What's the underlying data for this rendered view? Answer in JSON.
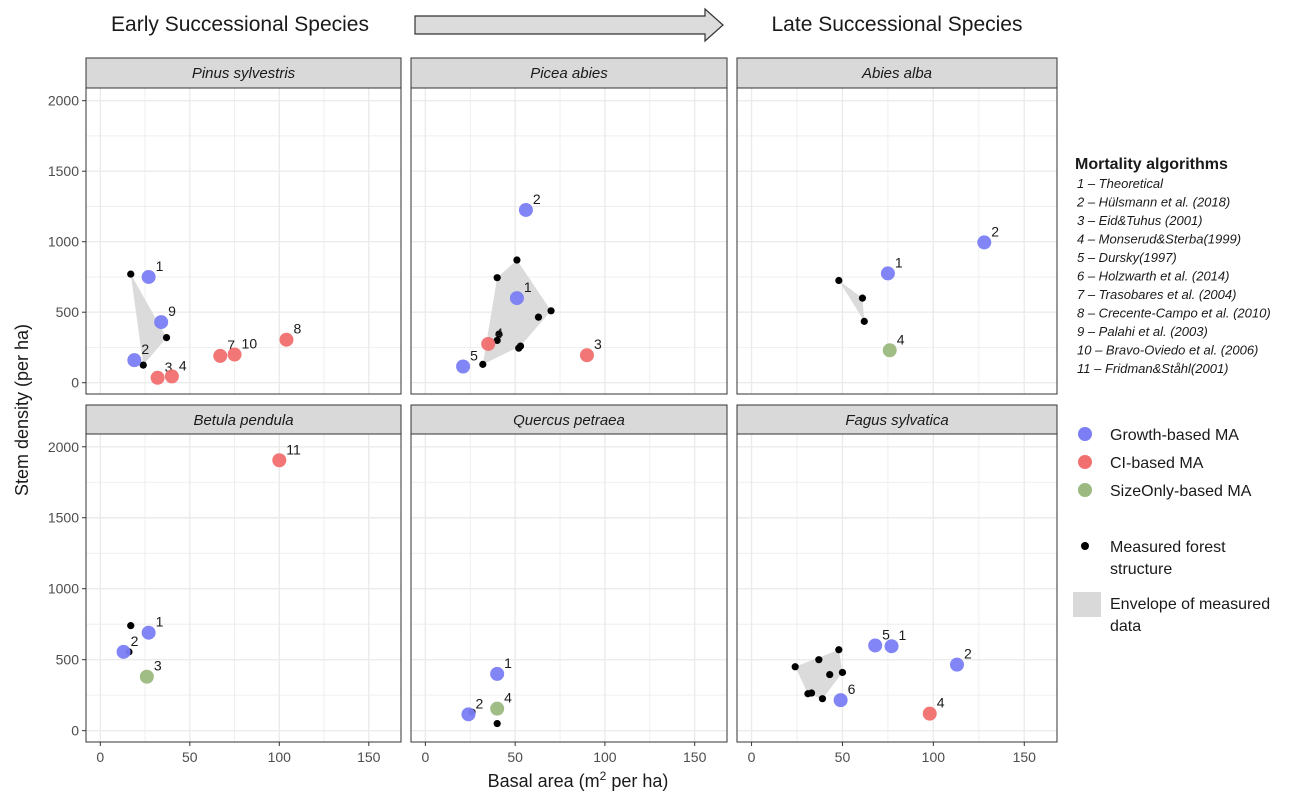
{
  "header": {
    "left_label": "Early Successional Species",
    "right_label": "Late Successional Species"
  },
  "axes": {
    "xlabel_main": "Basal area (m",
    "xlabel_sup": "2",
    "xlabel_tail": " per ha)",
    "ylabel": "Stem density (per ha)",
    "xticks": [
      0,
      50,
      100,
      150
    ],
    "yticks": [
      0,
      500,
      1000,
      1500,
      2000
    ]
  },
  "colors": {
    "growth": "#7b7ef4",
    "ci": "#f16f6f",
    "size": "#9bb980",
    "measured": "#000000",
    "envelope": "#d9d9d9",
    "strip": "#d9d9d9",
    "grid": "#ebebeb"
  },
  "legend": {
    "algorithms_title": "Mortality algorithms",
    "algorithms": [
      "1 – Theoretical",
      "2 – Hülsmann et al. (2018)",
      "3 – Eid&Tuhus (2001)",
      "4 – Monserud&Sterba(1999)",
      "5 – Dursky(1997)",
      "6 – Holzwarth et al. (2014)",
      "7 – Trasobares et al. (2004)",
      "8 – Crecente-Campo et al. (2010)",
      "9 – Palahi et al. (2003)",
      "10 – Bravo-Oviedo et al. (2006)",
      "11 – Fridman&Ståhl(2001)"
    ],
    "types": [
      {
        "key": "growth",
        "label": "Growth-based MA"
      },
      {
        "key": "ci",
        "label": "CI-based MA"
      },
      {
        "key": "size",
        "label": "SizeOnly-based MA"
      }
    ],
    "measured_label_1": "Measured forest",
    "measured_label_2": "structure",
    "envelope_label_1": "Envelope of measured",
    "envelope_label_2": "data"
  },
  "chart_data": {
    "type": "scatter",
    "xlim": [
      -8,
      168
    ],
    "ylim": [
      -80,
      2090
    ],
    "grid": true,
    "panels": [
      {
        "title": "Pinus sylvestris",
        "measured": [
          [
            17,
            770
          ],
          [
            37,
            320
          ],
          [
            24,
            125
          ]
        ],
        "envelope": [
          [
            17,
            770
          ],
          [
            37,
            320
          ],
          [
            24,
            125
          ]
        ],
        "points": [
          {
            "label": "1",
            "type": "growth",
            "x": 27,
            "y": 750
          },
          {
            "label": "9",
            "type": "growth",
            "x": 34,
            "y": 430
          },
          {
            "label": "2",
            "type": "growth",
            "x": 19,
            "y": 160
          },
          {
            "label": "3",
            "type": "ci",
            "x": 32,
            "y": 35
          },
          {
            "label": "4",
            "type": "ci",
            "x": 40,
            "y": 45
          },
          {
            "label": "7",
            "type": "ci",
            "x": 67,
            "y": 190
          },
          {
            "label": "10",
            "type": "ci",
            "x": 75,
            "y": 200
          },
          {
            "label": "8",
            "type": "ci",
            "x": 104,
            "y": 305
          }
        ]
      },
      {
        "title": "Picea abies",
        "measured": [
          [
            51,
            870
          ],
          [
            40,
            745
          ],
          [
            70,
            510
          ],
          [
            63,
            465
          ],
          [
            41,
            345
          ],
          [
            40,
            300
          ],
          [
            53,
            260
          ],
          [
            52,
            245
          ],
          [
            32,
            130
          ]
        ],
        "envelope": [
          [
            51,
            870
          ],
          [
            70,
            510
          ],
          [
            53,
            260
          ],
          [
            32,
            130
          ],
          [
            40,
            745
          ]
        ],
        "points": [
          {
            "label": "2",
            "type": "growth",
            "x": 56,
            "y": 1225
          },
          {
            "label": "1",
            "type": "growth",
            "x": 51,
            "y": 600
          },
          {
            "label": "4",
            "type": "ci",
            "x": 35,
            "y": 275
          },
          {
            "label": "5",
            "type": "growth",
            "x": 21,
            "y": 115
          },
          {
            "label": "3",
            "type": "ci",
            "x": 90,
            "y": 195
          }
        ]
      },
      {
        "title": "Abies alba",
        "measured": [
          [
            48,
            725
          ],
          [
            61,
            600
          ],
          [
            62,
            435
          ]
        ],
        "envelope": [
          [
            48,
            725
          ],
          [
            61,
            600
          ],
          [
            62,
            435
          ]
        ],
        "points": [
          {
            "label": "2",
            "type": "growth",
            "x": 128,
            "y": 995
          },
          {
            "label": "1",
            "type": "growth",
            "x": 75,
            "y": 775
          },
          {
            "label": "4",
            "type": "size",
            "x": 76,
            "y": 230
          }
        ]
      },
      {
        "title": "Betula pendula",
        "measured": [
          [
            17,
            740
          ],
          [
            16,
            555
          ]
        ],
        "envelope": [],
        "points": [
          {
            "label": "11",
            "type": "ci",
            "x": 100,
            "y": 1905
          },
          {
            "label": "1",
            "type": "growth",
            "x": 27,
            "y": 690
          },
          {
            "label": "2",
            "type": "growth",
            "x": 13,
            "y": 555
          },
          {
            "label": "3",
            "type": "size",
            "x": 26,
            "y": 380
          }
        ]
      },
      {
        "title": "Quercus petraea",
        "measured": [
          [
            26,
            130
          ],
          [
            40,
            50
          ]
        ],
        "envelope": [],
        "points": [
          {
            "label": "1",
            "type": "growth",
            "x": 40,
            "y": 400
          },
          {
            "label": "4",
            "type": "size",
            "x": 40,
            "y": 155
          },
          {
            "label": "2",
            "type": "growth",
            "x": 24,
            "y": 115
          }
        ]
      },
      {
        "title": "Fagus sylvatica",
        "measured": [
          [
            24,
            450
          ],
          [
            37,
            500
          ],
          [
            48,
            570
          ],
          [
            50,
            410
          ],
          [
            43,
            395
          ],
          [
            31,
            260
          ],
          [
            33,
            265
          ],
          [
            39,
            225
          ]
        ],
        "envelope": [
          [
            24,
            450
          ],
          [
            48,
            570
          ],
          [
            50,
            410
          ],
          [
            39,
            225
          ],
          [
            31,
            260
          ]
        ],
        "points": [
          {
            "label": "5",
            "type": "growth",
            "x": 68,
            "y": 600
          },
          {
            "label": "1",
            "type": "growth",
            "x": 77,
            "y": 595
          },
          {
            "label": "2",
            "type": "growth",
            "x": 113,
            "y": 465
          },
          {
            "label": "6",
            "type": "growth",
            "x": 49,
            "y": 215
          },
          {
            "label": "4",
            "type": "ci",
            "x": 98,
            "y": 120
          }
        ]
      }
    ]
  }
}
